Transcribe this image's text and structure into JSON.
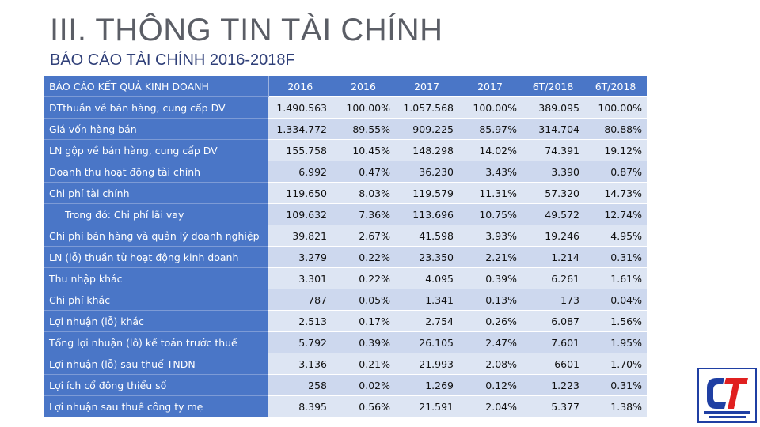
{
  "slide": {
    "title": "III. THÔNG TIN TÀI CHÍNH",
    "subtitle": "BÁO CÁO TÀI CHÍNH 2016-2018F"
  },
  "table": {
    "header": {
      "label": "BÁO CÁO KẾT QUẢ KINH DOANH",
      "columns": [
        "2016",
        "2016",
        "2017",
        "2017",
        "6T/2018",
        "6T/2018"
      ]
    },
    "rows": [
      {
        "label": "DTthuần về bán hàng, cung cấp DV",
        "values": [
          "1.490.563",
          "100.00%",
          "1.057.568",
          "100.00%",
          "389.095",
          "100.00%"
        ]
      },
      {
        "label": "Giá vốn hàng bán",
        "values": [
          "1.334.772",
          "89.55%",
          "909.225",
          "85.97%",
          "314.704",
          "80.88%"
        ]
      },
      {
        "label": "LN gộp về bán hàng, cung cấp DV",
        "values": [
          "155.758",
          "10.45%",
          "148.298",
          "14.02%",
          "74.391",
          "19.12%"
        ]
      },
      {
        "label": "Doanh thu hoạt động tài chính",
        "values": [
          "6.992",
          "0.47%",
          "36.230",
          "3.43%",
          "3.390",
          "0.87%"
        ]
      },
      {
        "label": "Chi phí tài chính",
        "values": [
          "119.650",
          "8.03%",
          "119.579",
          "11.31%",
          "57.320",
          "14.73%"
        ]
      },
      {
        "label": "Trong đó: Chi phí lãi vay",
        "values": [
          "109.632",
          "7.36%",
          "113.696",
          "10.75%",
          "49.572",
          "12.74%"
        ]
      },
      {
        "label": "Chi phí bán hàng và quản lý doanh nghiệp",
        "values": [
          "39.821",
          "2.67%",
          "41.598",
          "3.93%",
          "19.246",
          "4.95%"
        ]
      },
      {
        "label": "LN (lỗ) thuần từ hoạt động kinh doanh",
        "values": [
          "3.279",
          "0.22%",
          "23.350",
          "2.21%",
          "1.214",
          "0.31%"
        ]
      },
      {
        "label": "Thu nhập khác",
        "values": [
          "3.301",
          "0.22%",
          "4.095",
          "0.39%",
          "6.261",
          "1.61%"
        ]
      },
      {
        "label": "Chi phí khác",
        "values": [
          "787",
          "0.05%",
          "1.341",
          "0.13%",
          "173",
          "0.04%"
        ]
      },
      {
        "label": "Lợi nhuận (lỗ) khác",
        "values": [
          "2.513",
          "0.17%",
          "2.754",
          "0.26%",
          "6.087",
          "1.56%"
        ]
      },
      {
        "label": "Tổng lợi nhuận (lỗ) kế toán trước thuế",
        "values": [
          "5.792",
          "0.39%",
          "26.105",
          "2.47%",
          "7.601",
          "1.95%"
        ]
      },
      {
        "label": "Lợi nhuận (lỗ) sau thuế TNDN",
        "values": [
          "3.136",
          "0.21%",
          "21.993",
          "2.08%",
          "6601",
          "1.70%"
        ]
      },
      {
        "label": "Lợi ích cổ đông thiểu số",
        "values": [
          "258",
          "0.02%",
          "1.269",
          "0.12%",
          "1.223",
          "0.31%"
        ]
      },
      {
        "label": "Lợi nhuận sau thuế công ty mẹ",
        "values": [
          "8.395",
          "0.56%",
          "21.591",
          "2.04%",
          "5.377",
          "1.38%"
        ]
      }
    ]
  },
  "colors": {
    "header_blue": "#4a76c7",
    "cell_light": "#dde5f3",
    "cell_alt": "#cdd8ee",
    "logo_blue": "#1f3fa3",
    "logo_red": "#e02020"
  },
  "logo": {
    "icon": "company-logo-icon"
  }
}
